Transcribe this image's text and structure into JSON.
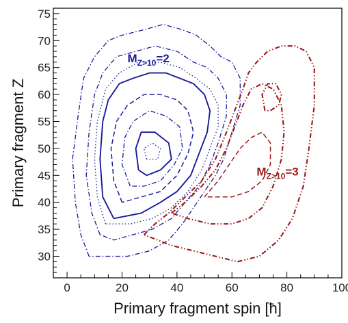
{
  "chart_data": {
    "type": "contour",
    "xlabel": "Primary fragment spin [ħ]",
    "ylabel": "Primary fragment Z",
    "xlim": [
      -5,
      100
    ],
    "ylim": [
      26,
      76
    ],
    "xticks": [
      0,
      20,
      40,
      60,
      80,
      100
    ],
    "yticks": [
      30,
      35,
      40,
      45,
      50,
      55,
      60,
      65,
      70,
      75
    ],
    "annotations": [
      {
        "base": "M",
        "sub": "Z>10",
        "suffix": "=2",
        "x": 22,
        "y": 66,
        "color": "#1a1a9a"
      },
      {
        "base": "M",
        "sub": "Z>10",
        "suffix": "=3",
        "x": 69,
        "y": 45,
        "color": "#9a1a1a"
      }
    ],
    "series": [
      {
        "color": "#1a1a9a",
        "contours": [
          {
            "style": "dashdot",
            "points": [
              [
                8,
                30
              ],
              [
                5,
                34
              ],
              [
                3,
                40
              ],
              [
                2,
                48
              ],
              [
                4,
                56
              ],
              [
                6,
                63
              ],
              [
                10,
                67
              ],
              [
                15,
                70
              ],
              [
                20,
                71
              ],
              [
                28,
                72
              ],
              [
                35,
                73
              ],
              [
                42,
                72
              ],
              [
                47,
                71
              ],
              [
                52,
                69
              ],
              [
                56,
                67
              ],
              [
                60,
                66
              ],
              [
                63,
                63
              ],
              [
                63,
                58
              ],
              [
                60,
                53
              ],
              [
                57,
                48
              ],
              [
                54,
                45
              ],
              [
                50,
                42
              ],
              [
                46,
                39
              ],
              [
                42,
                36
              ],
              [
                37,
                33
              ],
              [
                30,
                31
              ],
              [
                22,
                30
              ],
              [
                15,
                30
              ],
              [
                8,
                30
              ]
            ]
          },
          {
            "style": "dashdot",
            "points": [
              [
                12,
                34
              ],
              [
                9,
                38
              ],
              [
                7,
                45
              ],
              [
                8,
                53
              ],
              [
                10,
                60
              ],
              [
                13,
                64
              ],
              [
                18,
                67
              ],
              [
                25,
                68
              ],
              [
                32,
                69
              ],
              [
                40,
                68
              ],
              [
                46,
                66
              ],
              [
                51,
                65
              ],
              [
                55,
                63
              ],
              [
                58,
                60
              ],
              [
                58,
                56
              ],
              [
                55,
                51
              ],
              [
                52,
                47
              ],
              [
                48,
                43
              ],
              [
                43,
                40
              ],
              [
                38,
                37
              ],
              [
                31,
                35
              ],
              [
                24,
                34
              ],
              [
                17,
                33
              ],
              [
                12,
                34
              ]
            ]
          },
          {
            "style": "dotted",
            "points": [
              [
                14,
                36
              ],
              [
                11,
                41
              ],
              [
                10,
                48
              ],
              [
                11,
                55
              ],
              [
                14,
                61
              ],
              [
                19,
                64
              ],
              [
                26,
                66
              ],
              [
                34,
                66
              ],
              [
                41,
                65
              ],
              [
                47,
                63
              ],
              [
                52,
                61
              ],
              [
                55,
                58
              ],
              [
                55,
                54
              ],
              [
                52,
                50
              ],
              [
                49,
                46
              ],
              [
                44,
                42
              ],
              [
                38,
                39
              ],
              [
                31,
                37
              ],
              [
                23,
                36
              ],
              [
                14,
                36
              ]
            ]
          },
          {
            "style": "solid",
            "points": [
              [
                17,
                37
              ],
              [
                13,
                41
              ],
              [
                12,
                48
              ],
              [
                13,
                55
              ],
              [
                15,
                59
              ],
              [
                19,
                62
              ],
              [
                24,
                63
              ],
              [
                30,
                64
              ],
              [
                36,
                64
              ],
              [
                41,
                63
              ],
              [
                46,
                62
              ],
              [
                50,
                60
              ],
              [
                52,
                57
              ],
              [
                51,
                53
              ],
              [
                48,
                49
              ],
              [
                45,
                45
              ],
              [
                40,
                42
              ],
              [
                34,
                40
              ],
              [
                27,
                38
              ],
              [
                17,
                37
              ]
            ]
          },
          {
            "style": "dashed",
            "points": [
              [
                20,
                40
              ],
              [
                17,
                44
              ],
              [
                16,
                50
              ],
              [
                18,
                55
              ],
              [
                22,
                58
              ],
              [
                28,
                60
              ],
              [
                34,
                60
              ],
              [
                40,
                59
              ],
              [
                44,
                57
              ],
              [
                46,
                53
              ],
              [
                44,
                49
              ],
              [
                40,
                45
              ],
              [
                34,
                42
              ],
              [
                27,
                41
              ],
              [
                20,
                40
              ]
            ]
          },
          {
            "style": "dashdot",
            "points": [
              [
                23,
                43
              ],
              [
                20,
                47
              ],
              [
                21,
                52
              ],
              [
                24,
                55
              ],
              [
                30,
                57
              ],
              [
                36,
                56
              ],
              [
                41,
                54
              ],
              [
                42,
                50
              ],
              [
                39,
                47
              ],
              [
                34,
                44
              ],
              [
                28,
                43
              ],
              [
                23,
                43
              ]
            ]
          },
          {
            "style": "solid",
            "points": [
              [
                26,
                46
              ],
              [
                25,
                50
              ],
              [
                27,
                53
              ],
              [
                32,
                53
              ],
              [
                37,
                51
              ],
              [
                38,
                48
              ],
              [
                34,
                46
              ],
              [
                29,
                45
              ],
              [
                26,
                46
              ]
            ]
          },
          {
            "style": "dotted",
            "points": [
              [
                29,
                48
              ],
              [
                28,
                50
              ],
              [
                31,
                51
              ],
              [
                34,
                50
              ],
              [
                33,
                48
              ],
              [
                29,
                48
              ]
            ]
          }
        ]
      },
      {
        "color": "#9a1a1a",
        "contours": [
          {
            "style": "dashdotdot",
            "points": [
              [
                28,
                34
              ],
              [
                32,
                36
              ],
              [
                37,
                38
              ],
              [
                43,
                41
              ],
              [
                49,
                44
              ],
              [
                54,
                48
              ],
              [
                58,
                53
              ],
              [
                61,
                57
              ],
              [
                64,
                61
              ],
              [
                66,
                64
              ],
              [
                69,
                66
              ],
              [
                73,
                68
              ],
              [
                78,
                69
              ],
              [
                83,
                69
              ],
              [
                87,
                68
              ],
              [
                90,
                65
              ],
              [
                90,
                58
              ],
              [
                88,
                50
              ],
              [
                86,
                43
              ],
              [
                82,
                37
              ],
              [
                77,
                33
              ],
              [
                70,
                30
              ],
              [
                62,
                29
              ],
              [
                54,
                30
              ],
              [
                46,
                31
              ],
              [
                38,
                32
              ],
              [
                28,
                34
              ]
            ]
          },
          {
            "style": "dashdotdot",
            "points": [
              [
                38,
                38
              ],
              [
                43,
                40
              ],
              [
                49,
                43
              ],
              [
                54,
                46
              ],
              [
                58,
                50
              ],
              [
                61,
                54
              ],
              [
                64,
                58
              ],
              [
                67,
                61
              ],
              [
                71,
                62
              ],
              [
                75,
                61
              ],
              [
                78,
                58
              ],
              [
                79,
                53
              ],
              [
                78,
                48
              ],
              [
                75,
                43
              ],
              [
                71,
                39
              ],
              [
                66,
                37
              ],
              [
                60,
                36
              ],
              [
                52,
                36
              ],
              [
                44,
                37
              ],
              [
                38,
                38
              ]
            ]
          },
          {
            "style": "dashed",
            "points": [
              [
                50,
                41
              ],
              [
                55,
                44
              ],
              [
                59,
                47
              ],
              [
                63,
                50
              ],
              [
                67,
                52
              ],
              [
                71,
                53
              ],
              [
                74,
                51
              ],
              [
                74,
                47
              ],
              [
                71,
                44
              ],
              [
                66,
                42
              ],
              [
                60,
                41
              ],
              [
                50,
                41
              ]
            ]
          },
          {
            "style": "dashdotdot",
            "points": [
              [
                72,
                57
              ],
              [
                71,
                60
              ],
              [
                73,
                62
              ],
              [
                76,
                62
              ],
              [
                78,
                60
              ],
              [
                77,
                58
              ],
              [
                74,
                57
              ],
              [
                72,
                57
              ]
            ]
          }
        ]
      }
    ]
  }
}
